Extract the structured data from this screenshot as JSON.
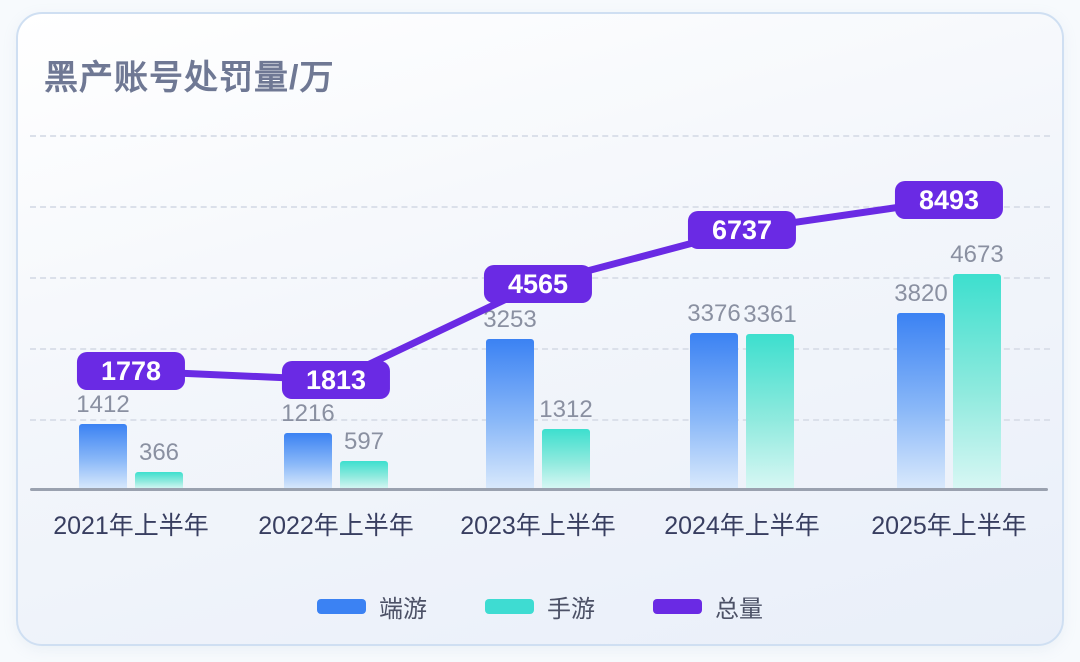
{
  "title": "黑产账号处罚量/万",
  "chart_data": {
    "type": "bar",
    "subtype": "grouped bars with total line overlay",
    "title": "黑产账号处罚量/万",
    "categories": [
      "2021年上半年",
      "2022年上半年",
      "2023年上半年",
      "2024年上半年",
      "2025年上半年"
    ],
    "series": [
      {
        "name": "端游",
        "type": "bar",
        "color": "#3b82f3",
        "values": [
          1412,
          1216,
          3253,
          3376,
          3820
        ]
      },
      {
        "name": "手游",
        "type": "bar",
        "color": "#3edcd2",
        "values": [
          366,
          597,
          1312,
          3361,
          4673
        ]
      },
      {
        "name": "总量",
        "type": "line",
        "color": "#6a2ae4",
        "values": [
          1778,
          1813,
          4565,
          6737,
          8493
        ]
      }
    ],
    "value_labels": "shown above bars in gray; totals shown in purple rounded badges on the line",
    "xlabel": "",
    "ylabel": "",
    "ylim": [
      0,
      10000
    ],
    "grid": "horizontal dashed lines, no y tick labels",
    "legend_position": "bottom"
  },
  "legend": {
    "accent_purple": "#6a2ae4",
    "accent_blue": "#3b82f3",
    "accent_teal": "#3edcd2"
  }
}
